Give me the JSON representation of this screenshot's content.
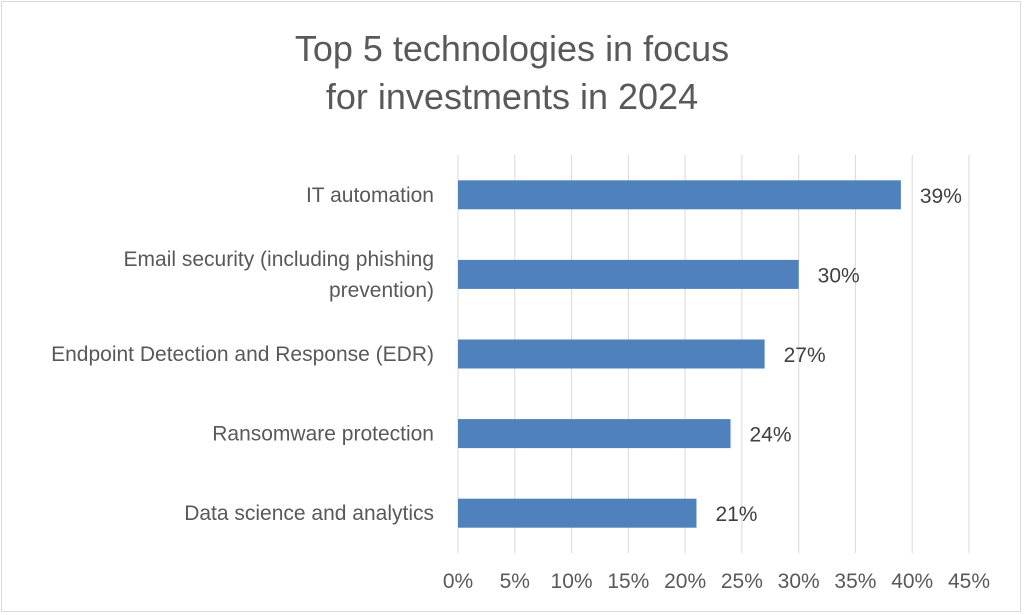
{
  "chart_data": {
    "type": "bar",
    "orientation": "horizontal",
    "title_lines": [
      "Top 5 technologies in focus",
      "for investments in 2024"
    ],
    "categories": [
      [
        "IT automation"
      ],
      [
        "Email security (including phishing",
        "prevention)"
      ],
      [
        "Endpoint Detection and Response (EDR)"
      ],
      [
        "Ransomware protection"
      ],
      [
        "Data science and analytics"
      ]
    ],
    "values": [
      39,
      30,
      27,
      24,
      21
    ],
    "data_labels": [
      "39%",
      "30%",
      "27%",
      "24%",
      "21%"
    ],
    "x_ticks": [
      0,
      5,
      10,
      15,
      20,
      25,
      30,
      35,
      40,
      45
    ],
    "x_tick_labels": [
      "0%",
      "5%",
      "10%",
      "15%",
      "20%",
      "25%",
      "30%",
      "35%",
      "40%",
      "45%"
    ],
    "xlim": [
      0,
      45
    ],
    "grid": "vertical",
    "legend": "none",
    "bar_color": "#4f81bd",
    "grid_color": "#d9d9d9"
  }
}
